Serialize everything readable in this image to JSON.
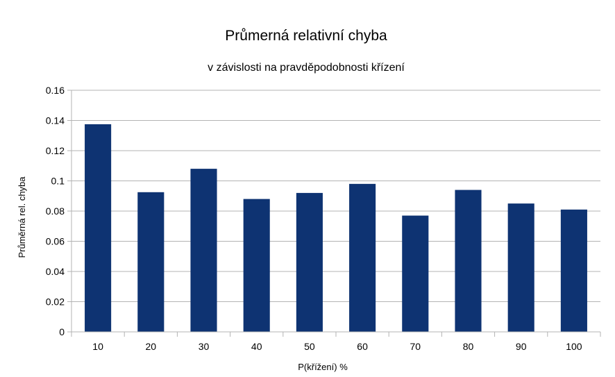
{
  "chart_data": {
    "type": "bar",
    "title": "Průmerná relativní chyba",
    "subtitle": "v závislosti na pravděpodobnosti křízení",
    "xlabel": "P(křížení) %",
    "ylabel": "Průměrná rel. chyba",
    "categories": [
      "10",
      "20",
      "30",
      "40",
      "50",
      "60",
      "70",
      "80",
      "90",
      "100"
    ],
    "values": [
      0.1375,
      0.0925,
      0.108,
      0.088,
      0.092,
      0.098,
      0.077,
      0.094,
      0.085,
      0.081
    ],
    "ylim": [
      0,
      0.16
    ],
    "yticks": [
      "0",
      "0.02",
      "0.04",
      "0.06",
      "0.08",
      "0.1",
      "0.12",
      "0.14",
      "0.16"
    ],
    "grid": true,
    "legend": "none",
    "bar_color": "#0e3372",
    "grid_color": "#b3b3b3"
  }
}
